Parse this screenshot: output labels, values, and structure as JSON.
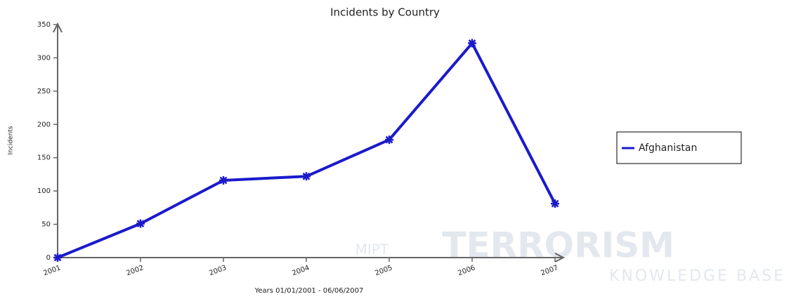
{
  "chart_data": {
    "type": "line",
    "title": "Incidents by Country",
    "x_label": "Years 01/01/2001 - 06/06/2007",
    "y_label": "Incidents",
    "categories": [
      "2001",
      "2002",
      "2003",
      "2004",
      "2005",
      "2006",
      "2007"
    ],
    "series": [
      {
        "name": "Afghanistan",
        "color": "#1a1acc",
        "values": [
          0,
          51,
          116,
          122,
          177,
          322,
          81
        ]
      }
    ],
    "ylim": [
      0,
      350
    ],
    "yticks": [
      0,
      50,
      100,
      150,
      200,
      250,
      300,
      350
    ],
    "legend": "right",
    "watermark": {
      "small": "MIPT",
      "large": "TERRORISM",
      "sub": "KNOWLEDGE BASE"
    }
  }
}
